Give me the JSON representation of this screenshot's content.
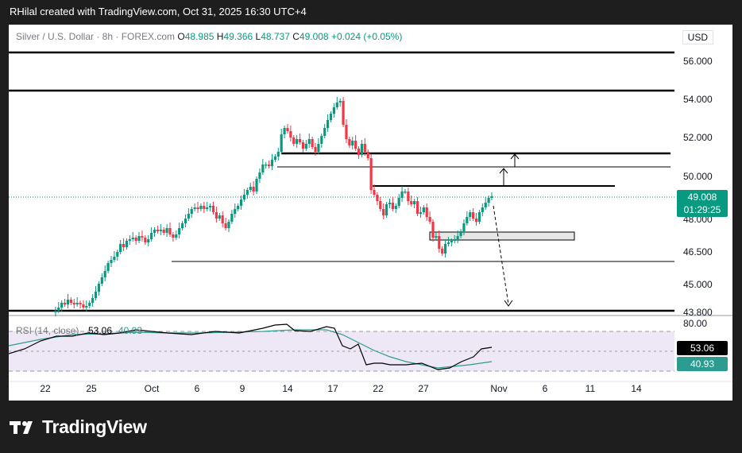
{
  "header": {
    "caption": "RHilal created with TradingView.com, Oct 31, 2025 16:30 UTC+4"
  },
  "symbol": {
    "name": "Silver / U.S. Dollar · 8h · FOREX.com",
    "open_label": "O",
    "open": "48.985",
    "high_label": "H",
    "high": "49.366",
    "low_label": "L",
    "low": "48.737",
    "close_label": "C",
    "close": "49.008",
    "change": "+0.024 (+0.05%)"
  },
  "currency": "USD",
  "price_axis": {
    "ticks": [
      "56.000",
      "54.000",
      "52.000",
      "50.000",
      "48.000",
      "46.500",
      "45.000",
      "43.800"
    ],
    "current_price": "49.008",
    "countdown": "01:29:25"
  },
  "rsi": {
    "legend": "RSI (14, close)",
    "value": "53.06",
    "ma_value": "40.93",
    "upper_label": "80.00"
  },
  "time_axis": {
    "ticks": [
      "22",
      "25",
      "Oct",
      "6",
      "9",
      "14",
      "17",
      "22",
      "27",
      "Nov",
      "6",
      "11",
      "14"
    ]
  },
  "colors": {
    "up": "#089981",
    "down": "#f23645",
    "rsi_ma": "#2b9c8f",
    "band": "#ede7f6"
  },
  "footer": {
    "brand": "TradingView",
    "logo_icon": "tradingview-logo-icon"
  }
}
